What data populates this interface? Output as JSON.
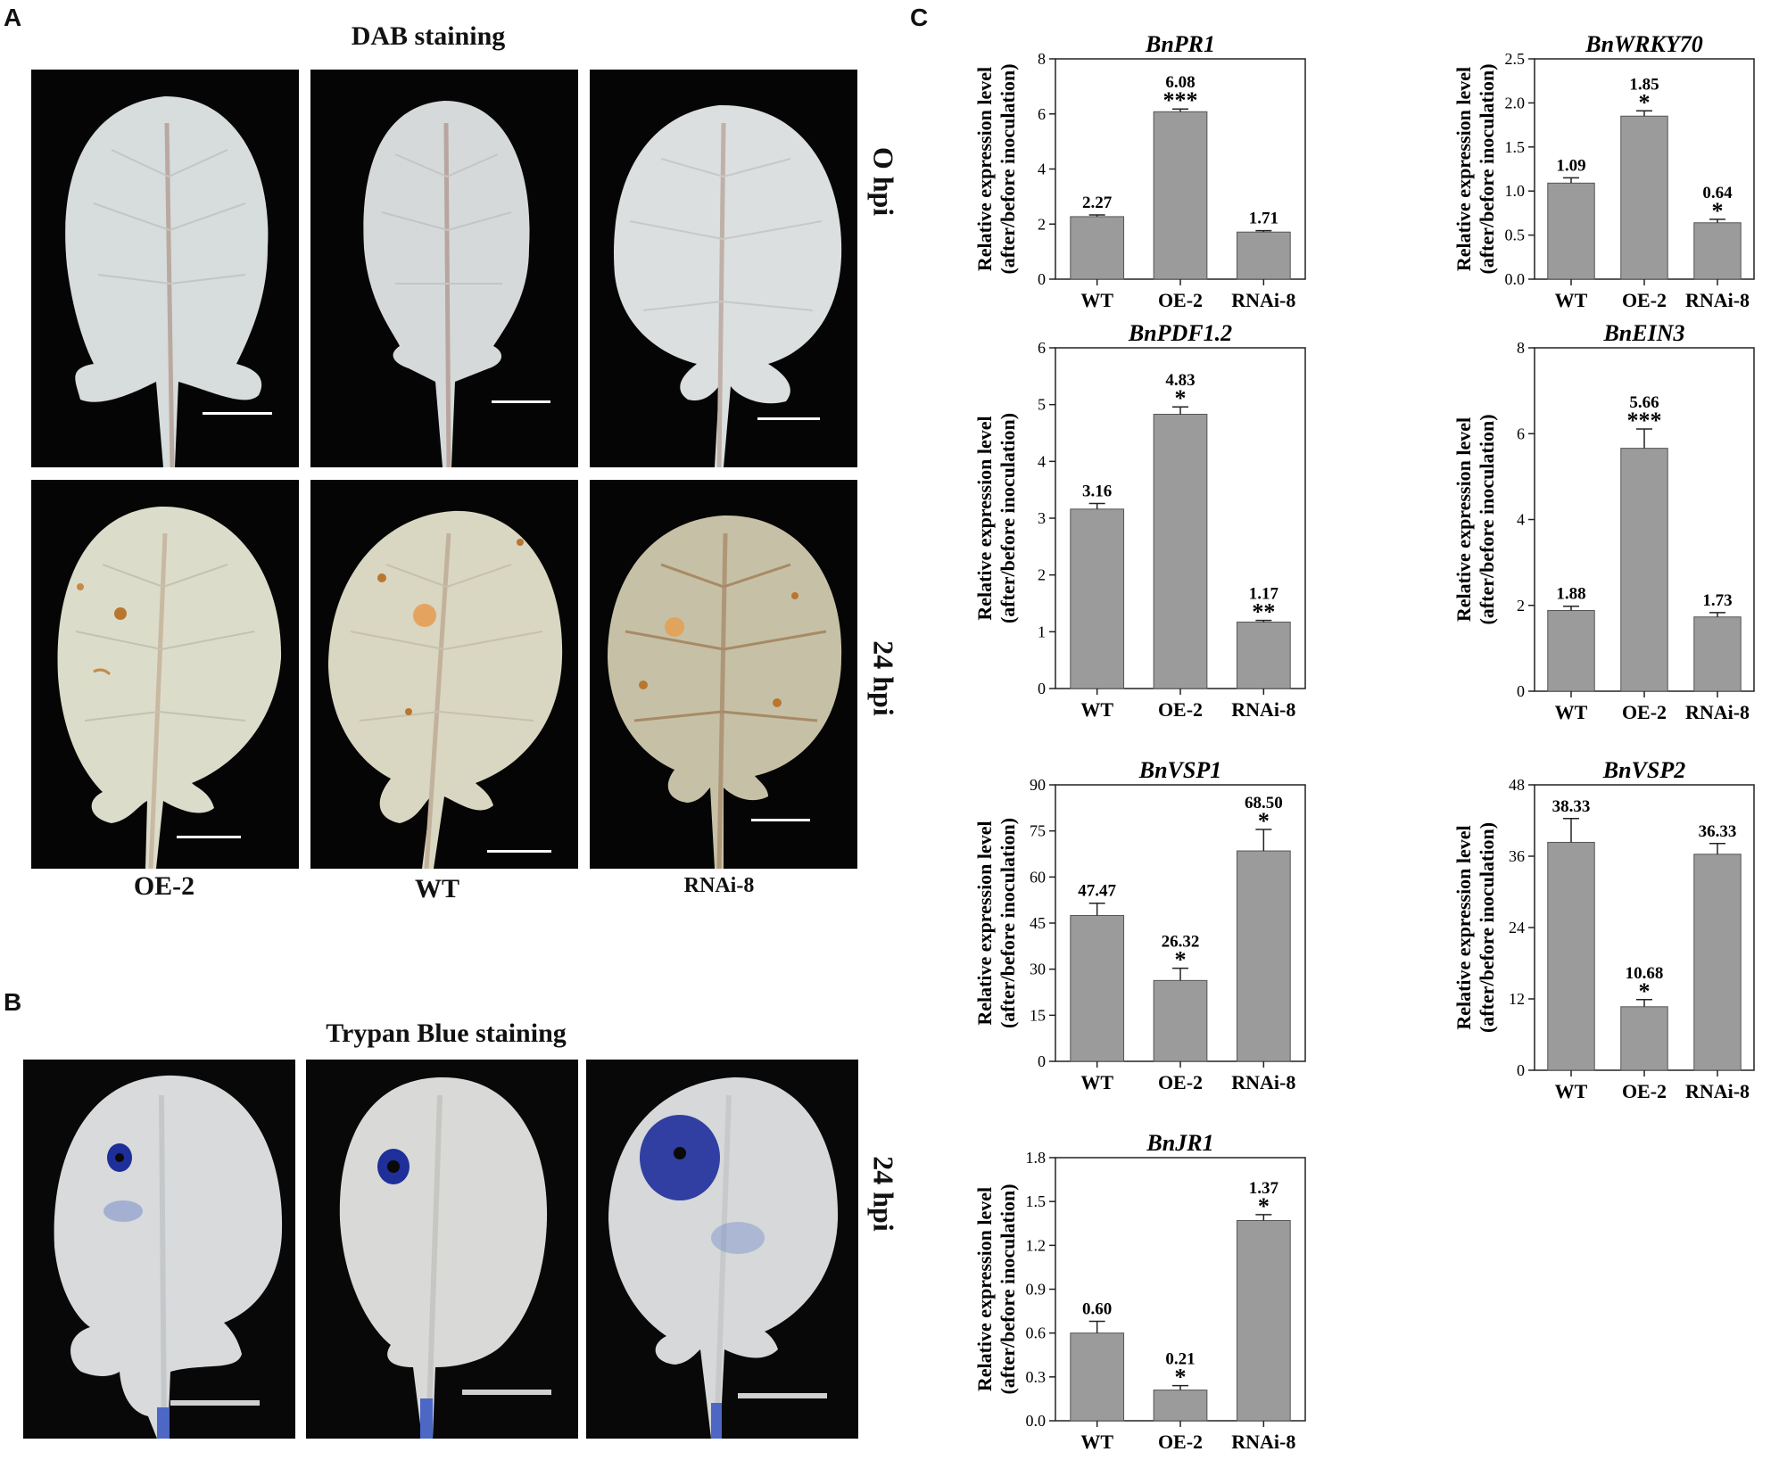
{
  "panels": {
    "a": {
      "letter": "A",
      "title": "DAB staining",
      "timepoints": [
        "O hpi",
        "24 hpi"
      ],
      "genotypes": [
        "OE-2",
        "WT",
        "RNAi-8"
      ]
    },
    "b": {
      "letter": "B",
      "title": "Trypan Blue staining",
      "timepoint": "24 hpi"
    },
    "c": {
      "letter": "C"
    }
  },
  "colors": {
    "bar_fill": "#9b9b9b",
    "photo_bg": "#050505",
    "leaf_fresh": "#d9dcd8",
    "leaf_dab": "#d8d5c2",
    "dab_spot": "#b9762f",
    "trypan_blue": "#1e2f9a",
    "scale_bar": "#ffffff"
  },
  "chart_data": [
    {
      "type": "bar",
      "title": "BnPR1",
      "categories": [
        "WT",
        "OE-2",
        "RNAi-8"
      ],
      "values": [
        2.27,
        6.08,
        1.71
      ],
      "errors": [
        0.06,
        0.1,
        0.05
      ],
      "value_labels": [
        "2.27",
        "6.08",
        "1.71"
      ],
      "significance": [
        "",
        "***",
        ""
      ],
      "ylabel": [
        "Relative expression level",
        "(after/before inoculation)"
      ],
      "ylim": [
        0,
        8
      ],
      "yticks": [
        "0",
        "2",
        "4",
        "6",
        "8"
      ]
    },
    {
      "type": "bar",
      "title": "BnWRKY70",
      "categories": [
        "WT",
        "OE-2",
        "RNAi-8"
      ],
      "values": [
        1.09,
        1.85,
        0.64
      ],
      "errors": [
        0.06,
        0.06,
        0.04
      ],
      "value_labels": [
        "1.09",
        "1.85",
        "0.64"
      ],
      "significance": [
        "",
        "*",
        "*"
      ],
      "ylabel": [
        "Relative expression level",
        "(after/before inoculation)"
      ],
      "ylim": [
        0,
        2.5
      ],
      "yticks": [
        "0.0",
        "0.5",
        "1.0",
        "1.5",
        "2.0",
        "2.5"
      ]
    },
    {
      "type": "bar",
      "title": "BnPDF1.2",
      "categories": [
        "WT",
        "OE-2",
        "RNAi-8"
      ],
      "values": [
        3.16,
        4.83,
        1.17
      ],
      "errors": [
        0.1,
        0.13,
        0.03
      ],
      "value_labels": [
        "3.16",
        "4.83",
        "1.17"
      ],
      "significance": [
        "",
        "*",
        "**"
      ],
      "ylabel": [
        "Relative expression level",
        "(after/before inoculation)"
      ],
      "ylim": [
        0,
        6
      ],
      "yticks": [
        "0",
        "1",
        "2",
        "3",
        "4",
        "5",
        "6"
      ]
    },
    {
      "type": "bar",
      "title": "BnEIN3",
      "categories": [
        "WT",
        "OE-2",
        "RNAi-8"
      ],
      "values": [
        1.88,
        5.66,
        1.73
      ],
      "errors": [
        0.1,
        0.45,
        0.1
      ],
      "value_labels": [
        "1.88",
        "5.66",
        "1.73"
      ],
      "significance": [
        "",
        "***",
        ""
      ],
      "ylabel": [
        "Relative expression level",
        "(after/before inoculation)"
      ],
      "ylim": [
        0,
        8
      ],
      "yticks": [
        "0",
        "2",
        "4",
        "6",
        "8"
      ]
    },
    {
      "type": "bar",
      "title": "BnVSP1",
      "categories": [
        "WT",
        "OE-2",
        "RNAi-8"
      ],
      "values": [
        47.47,
        26.32,
        68.5
      ],
      "errors": [
        4.0,
        4.0,
        7.0
      ],
      "value_labels": [
        "47.47",
        "26.32",
        "68.50"
      ],
      "significance": [
        "",
        "*",
        "*"
      ],
      "ylabel": [
        "Relative expression level",
        "(after/before inoculation)"
      ],
      "ylim": [
        0,
        90
      ],
      "yticks": [
        "0",
        "15",
        "30",
        "45",
        "60",
        "75",
        "90"
      ]
    },
    {
      "type": "bar",
      "title": "BnVSP2",
      "categories": [
        "WT",
        "OE-2",
        "RNAi-8"
      ],
      "values": [
        38.33,
        10.68,
        36.33
      ],
      "errors": [
        4.0,
        1.2,
        1.8
      ],
      "value_labels": [
        "38.33",
        "10.68",
        "36.33"
      ],
      "significance": [
        "",
        "*",
        ""
      ],
      "ylabel": [
        "Relative expression level",
        "(after/before inoculation)"
      ],
      "ylim": [
        0,
        48
      ],
      "yticks": [
        "0",
        "12",
        "24",
        "36",
        "48"
      ]
    },
    {
      "type": "bar",
      "title": "BnJR1",
      "categories": [
        "WT",
        "OE-2",
        "RNAi-8"
      ],
      "values": [
        0.6,
        0.21,
        1.37
      ],
      "errors": [
        0.08,
        0.03,
        0.04
      ],
      "value_labels": [
        "0.60",
        "0.21",
        "1.37"
      ],
      "significance": [
        "",
        "*",
        "*"
      ],
      "ylabel": [
        "Relative expression level",
        "(after/before inoculation)"
      ],
      "ylim": [
        0,
        1.8
      ],
      "yticks": [
        "0.0",
        "0.3",
        "0.6",
        "0.9",
        "1.2",
        "1.5",
        "1.8"
      ]
    }
  ]
}
